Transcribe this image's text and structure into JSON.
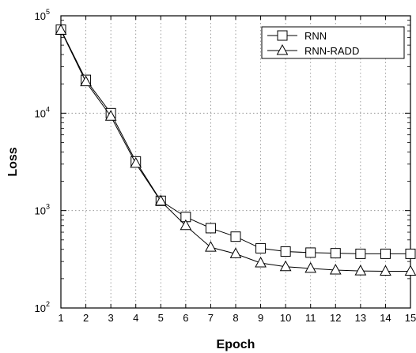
{
  "chart_data": {
    "type": "line",
    "xlabel": "Epoch",
    "ylabel": "Loss",
    "y_scale": "log",
    "xlim": [
      1,
      15
    ],
    "ylim": [
      100,
      100000
    ],
    "x_ticks": [
      "1",
      "2",
      "3",
      "4",
      "5",
      "6",
      "7",
      "8",
      "9",
      "10",
      "11",
      "12",
      "13",
      "14",
      "15"
    ],
    "y_ticks": [
      {
        "base": "10",
        "exp": "2",
        "value": 100
      },
      {
        "base": "10",
        "exp": "3",
        "value": 1000
      },
      {
        "base": "10",
        "exp": "4",
        "value": 10000
      },
      {
        "base": "10",
        "exp": "5",
        "value": 100000
      }
    ],
    "grid": true,
    "legend_position": "top-right",
    "x": [
      1,
      2,
      3,
      4,
      5,
      6,
      7,
      8,
      9,
      10,
      11,
      12,
      13,
      14,
      15
    ],
    "series": [
      {
        "name": "RNN",
        "marker": "square",
        "values": [
          72000,
          22000,
          10000,
          3200,
          1260,
          860,
          660,
          540,
          410,
          380,
          370,
          365,
          360,
          360,
          360
        ]
      },
      {
        "name": "RNN-RADD",
        "marker": "triangle",
        "values": [
          71000,
          21000,
          9300,
          3050,
          1250,
          700,
          420,
          360,
          290,
          265,
          255,
          245,
          240,
          238,
          238
        ]
      }
    ]
  }
}
